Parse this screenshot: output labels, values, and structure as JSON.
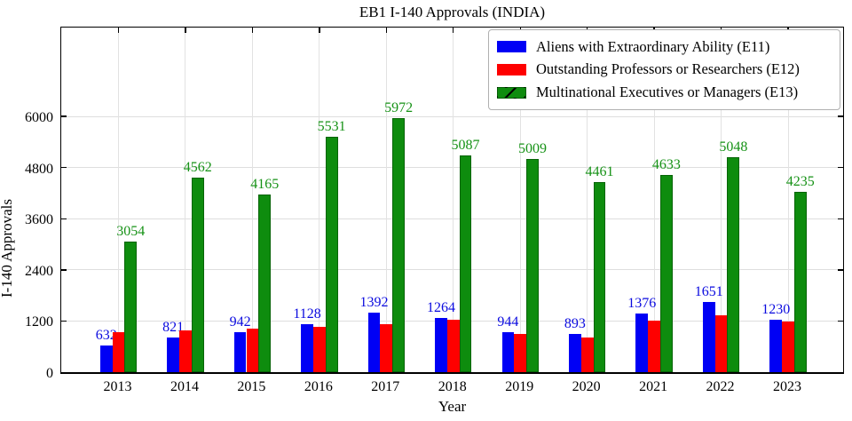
{
  "title": "EB1 I-140 Approvals (INDIA)",
  "chart_data": {
    "type": "bar",
    "title": "EB1 I-140 Approvals (INDIA)",
    "xlabel": "Year",
    "ylabel": "I-140 Approvals",
    "categories": [
      "2013",
      "2014",
      "2015",
      "2016",
      "2017",
      "2018",
      "2019",
      "2020",
      "2021",
      "2022",
      "2023"
    ],
    "series": [
      {
        "name": "Aliens with Extraordinary Ability (E11)",
        "color": "#0000f5",
        "hatch": "none",
        "values": [
          632,
          821,
          942,
          1128,
          1392,
          1264,
          944,
          893,
          1376,
          1651,
          1230
        ],
        "show_value_labels": true,
        "label_color": "#0a0adf"
      },
      {
        "name": "Outstanding Professors or Researchers (E12)",
        "color": "#fe0000",
        "hatch": "none",
        "values": [
          940,
          980,
          1020,
          1060,
          1130,
          1230,
          900,
          810,
          1200,
          1330,
          1180
        ],
        "show_value_labels": false,
        "label_color": "#fe0000"
      },
      {
        "name": "Multinational Executives or Managers (E13)",
        "color": "#0e8c0e",
        "hatch": "/",
        "values": [
          3054,
          4562,
          4165,
          5531,
          5972,
          5087,
          5009,
          4461,
          4633,
          5048,
          4235
        ],
        "show_value_labels": true,
        "label_color": "#169216"
      }
    ],
    "yticks": [
      0,
      1200,
      2400,
      3600,
      4800,
      6000
    ],
    "ylim": [
      0,
      8150
    ],
    "grid": true,
    "grid_color": "#dedede",
    "legend_position": "upper right"
  }
}
